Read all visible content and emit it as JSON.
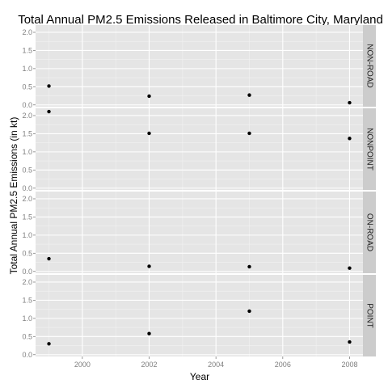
{
  "chart_data": {
    "type": "scatter",
    "title": "Total Annual PM2.5 Emissions Released in Baltimore City, Maryland",
    "xlabel": "Year",
    "ylabel": "Total Annual PM2.5 Emissions (in kt)",
    "x_ticks": [
      2000,
      2002,
      2004,
      2006,
      2008
    ],
    "x_tick_labels": [
      "2000",
      "2002",
      "2004",
      "2006",
      "2008"
    ],
    "y_ticks": [
      0.0,
      0.5,
      1.0,
      1.5,
      2.0
    ],
    "y_tick_labels": [
      "0.0",
      "0.5",
      "1.0",
      "1.5",
      "2.0"
    ],
    "xlim": [
      1998.6,
      2008.4
    ],
    "ylim": [
      -0.05,
      2.2
    ],
    "grid": true,
    "facet_by": "type",
    "facets": [
      {
        "label": "NON-ROAD",
        "x": [
          1999,
          2002,
          2005,
          2008
        ],
        "y": [
          0.52,
          0.24,
          0.27,
          0.06
        ]
      },
      {
        "label": "NONPOINT",
        "x": [
          1999,
          2002,
          2005,
          2008
        ],
        "y": [
          2.11,
          1.51,
          1.51,
          1.37
        ]
      },
      {
        "label": "ON-ROAD",
        "x": [
          1999,
          2002,
          2005,
          2008
        ],
        "y": [
          0.35,
          0.14,
          0.13,
          0.09
        ]
      },
      {
        "label": "POINT",
        "x": [
          1999,
          2002,
          2005,
          2008
        ],
        "y": [
          0.3,
          0.58,
          1.2,
          0.35
        ]
      }
    ],
    "colors": {
      "panel_background": "#e5e5e5",
      "grid_major": "#ffffff",
      "grid_minor": "#f2f2f2",
      "strip_background": "#cccccc",
      "point": "#000000",
      "tick_text": "#7f7f7f"
    }
  }
}
